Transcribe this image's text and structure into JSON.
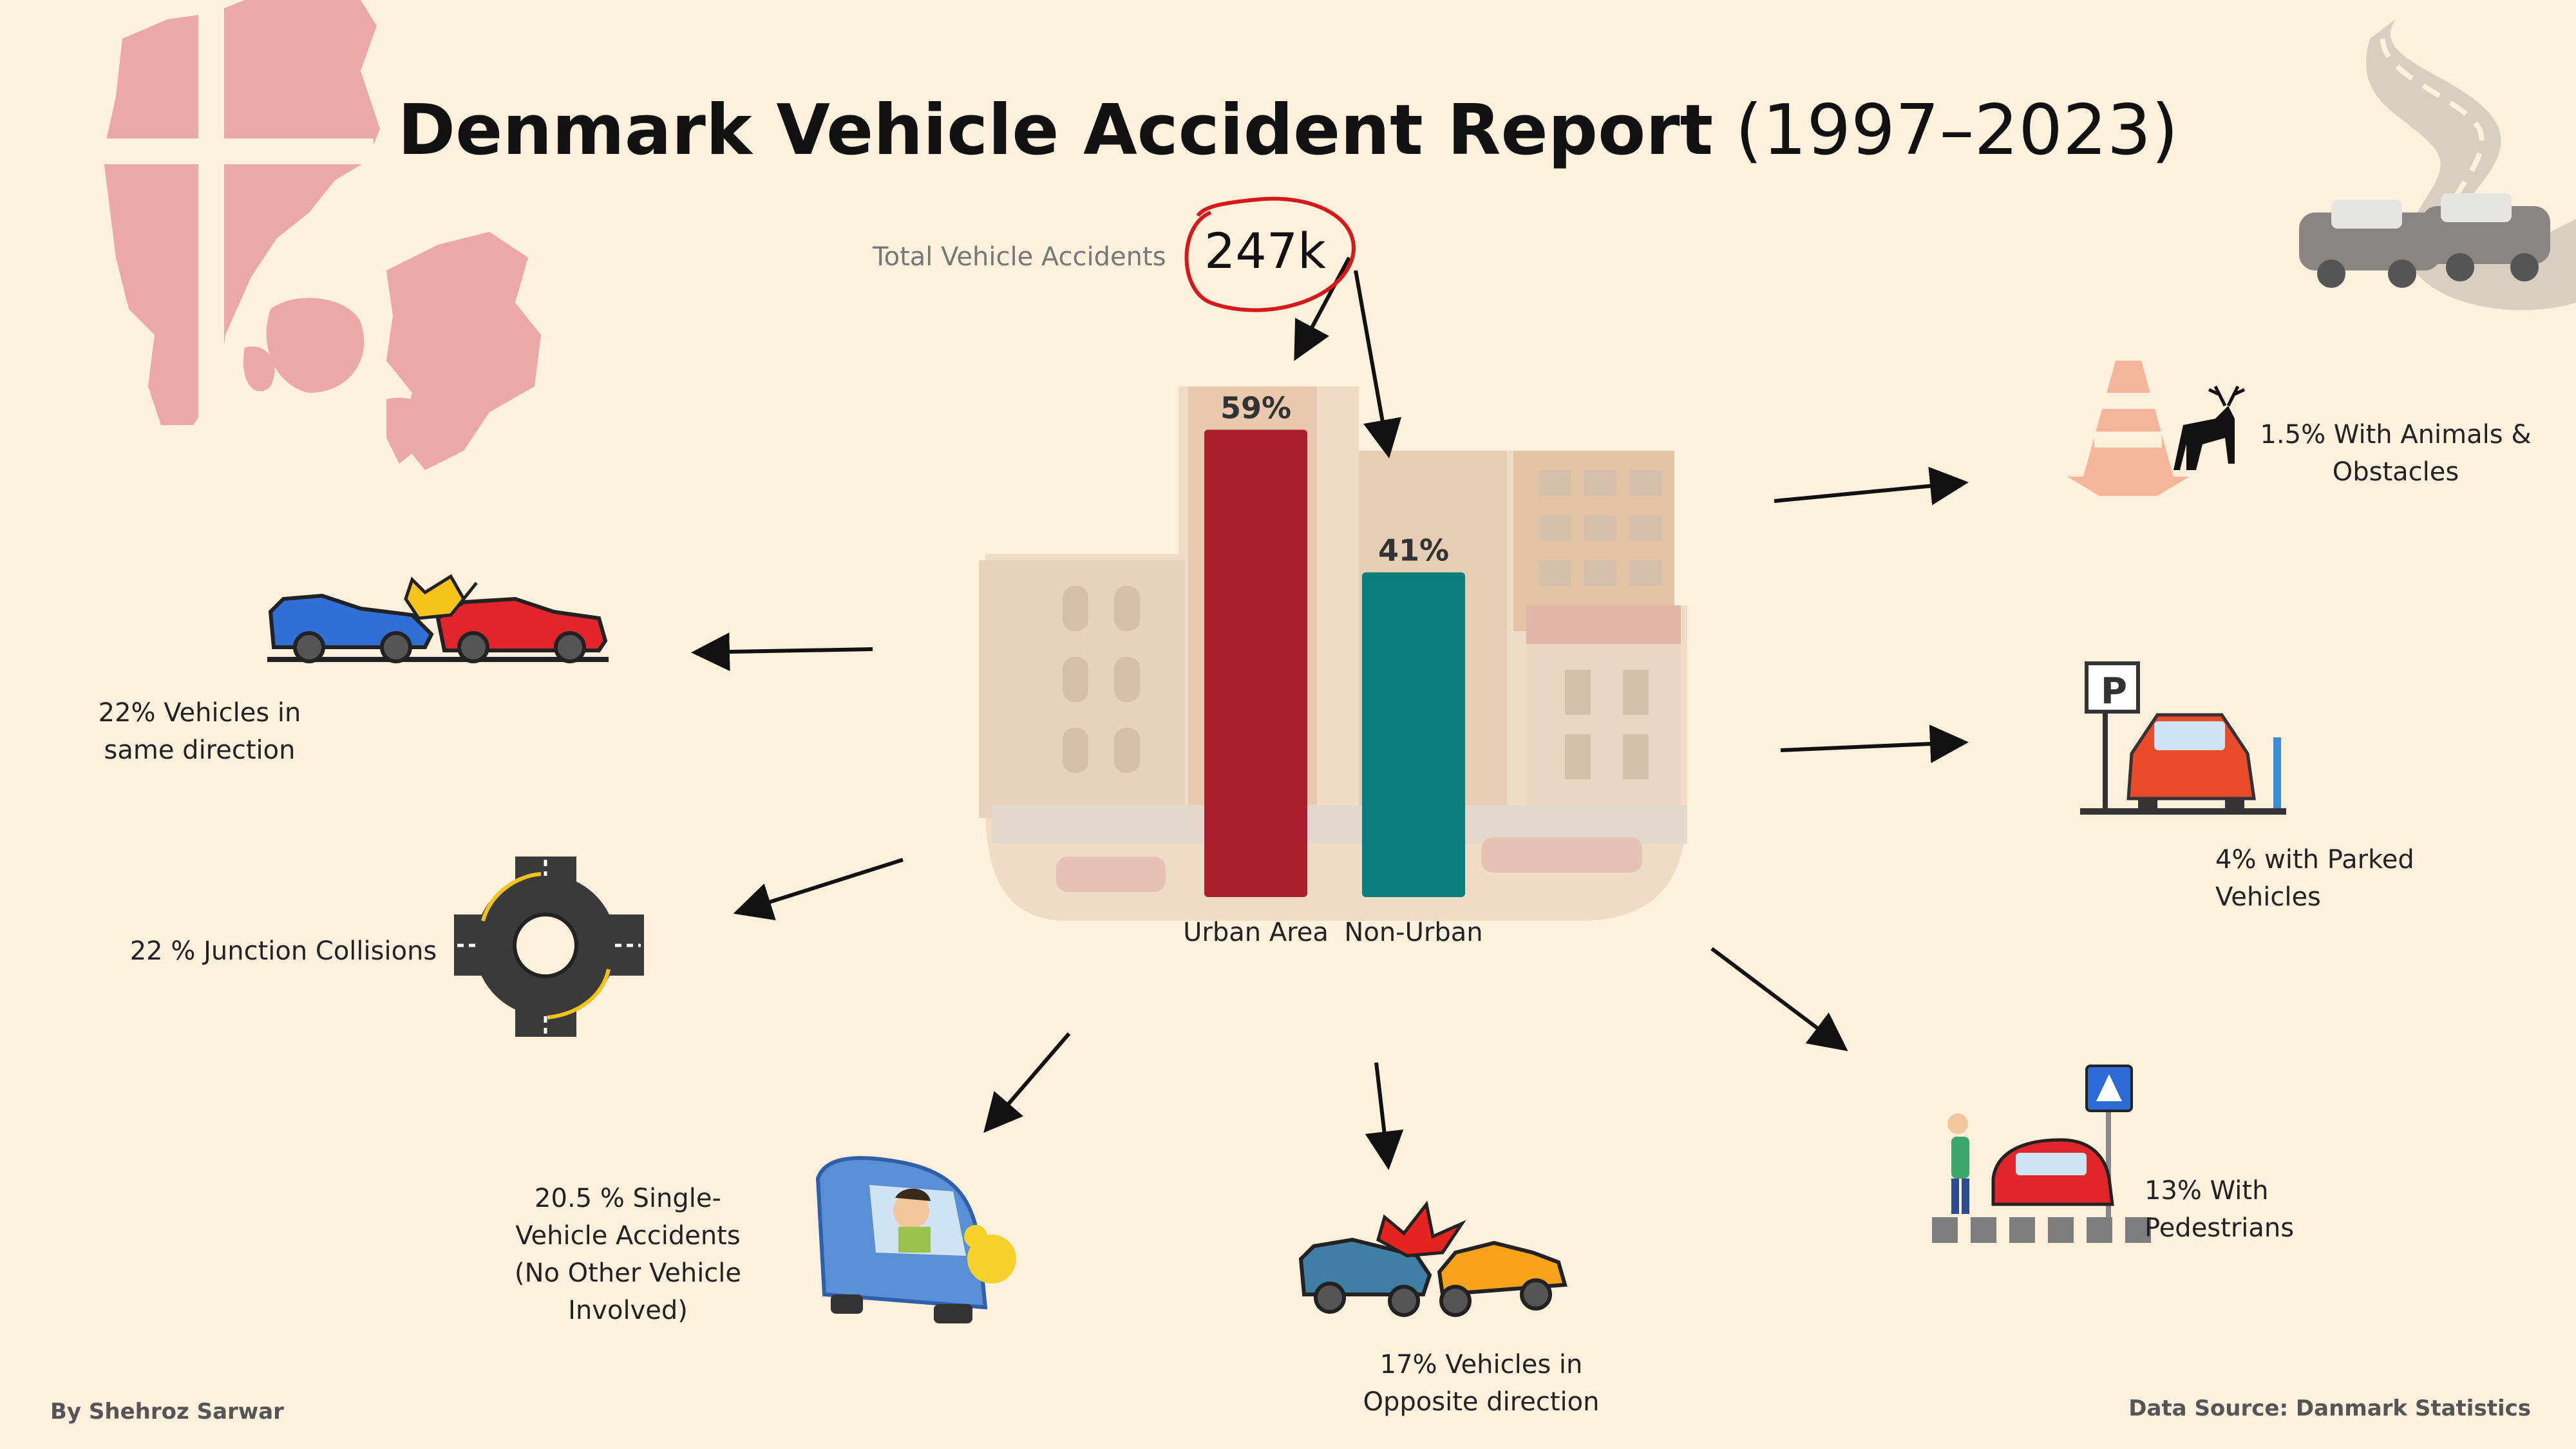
{
  "title": {
    "main": "Denmark Vehicle Accident Report",
    "years": "(1997–2023)"
  },
  "total": {
    "label": "Total Vehicle Accidents",
    "value": "247k"
  },
  "chart_data": {
    "type": "bar",
    "categories": [
      "Urban Area",
      "Non-Urban"
    ],
    "values": [
      59,
      41
    ],
    "data_labels": [
      "59%",
      "41%"
    ],
    "colors": [
      "#ab1e2e",
      "#0a7c7c"
    ],
    "ylim": [
      0,
      60
    ],
    "title": "",
    "xlabel": "",
    "ylabel": ""
  },
  "categories": {
    "same_direction": "22% Vehicles in same direction",
    "junction": "22 % Junction Collisions",
    "single_vehicle": "20.5 % Single-Vehicle Accidents (No Other Vehicle Involved)",
    "opposite": "17% Vehicles in Opposite direction",
    "pedestrians": "13% With Pedestrians",
    "parked": "4% with Parked Vehicles",
    "animals": "1.5% With Animals & Obstacles"
  },
  "footer": {
    "author": "By Shehroz Sarwar",
    "source": "Data Source: Danmark Statistics"
  },
  "icons": [
    "denmark-map-icon",
    "road-crash-icon",
    "rear-end-collision-icon",
    "roundabout-icon",
    "single-vehicle-crash-icon",
    "head-on-collision-icon",
    "pedestrian-crossing-icon",
    "parked-car-icon",
    "cone-deer-icon",
    "city-buildings-icon"
  ]
}
